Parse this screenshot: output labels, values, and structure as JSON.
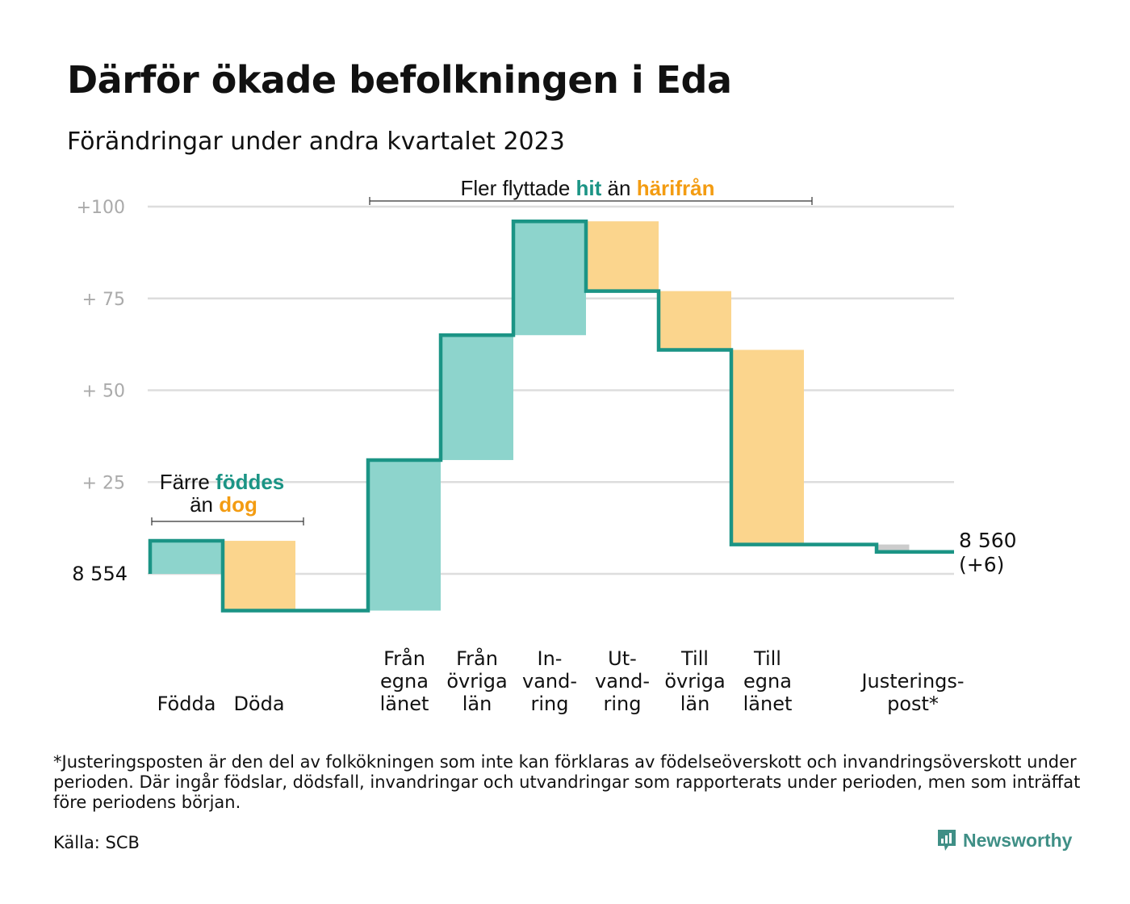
{
  "header": {
    "title": "Därför ökade befolkningen i Eda",
    "subtitle": "Förändringar under andra kvartalet 2023"
  },
  "chart_data": {
    "type": "waterfall",
    "start_value": 8554,
    "start_label": "8  554",
    "end_value": 8560,
    "end_label": "8 560",
    "end_change_label": "(+6)",
    "y_ticks": [
      {
        "value": 100,
        "label": "+100"
      },
      {
        "value": 75,
        "label": "+  75"
      },
      {
        "value": 50,
        "label": "+  50"
      },
      {
        "value": 25,
        "label": "+  25"
      }
    ],
    "ylim": [
      -12,
      100
    ],
    "grid": true,
    "steps": [
      {
        "label": [
          "Födda"
        ],
        "value": 9,
        "kind": "in"
      },
      {
        "label": [
          "Döda"
        ],
        "value": -19,
        "kind": "out"
      },
      {
        "label": [],
        "value": 0,
        "kind": "gap"
      },
      {
        "label": [
          "Från",
          "egna",
          "länet"
        ],
        "value": 41,
        "kind": "in"
      },
      {
        "label": [
          "Från",
          "övriga",
          "län"
        ],
        "value": 34,
        "kind": "in"
      },
      {
        "label": [
          "In-",
          "vand-",
          "ring"
        ],
        "value": 31,
        "kind": "in"
      },
      {
        "label": [
          "Ut-",
          "vand-",
          "ring"
        ],
        "value": -19,
        "kind": "out"
      },
      {
        "label": [
          "Till",
          "övriga",
          "län"
        ],
        "value": -16,
        "kind": "out"
      },
      {
        "label": [
          "Till",
          "egna",
          "länet"
        ],
        "value": -53,
        "kind": "out"
      },
      {
        "label": [],
        "value": 0,
        "kind": "gap"
      },
      {
        "label": [
          "Justerings-",
          "post*"
        ],
        "value": -2,
        "kind": "adjust"
      }
    ],
    "annotations": [
      {
        "id": "birth",
        "line1_prefix": "Färre ",
        "line1_highlight": "föddes",
        "line2_prefix": "än ",
        "line2_highlight": "dog"
      },
      {
        "id": "move",
        "prefix": "Fler flyttade ",
        "highlight1": "hit",
        "middle": " än ",
        "highlight2": "härifrån"
      }
    ],
    "colors": {
      "in": "#8dd4cc",
      "out": "#fbd58d",
      "adjust": "#cccccc",
      "line": "#1b9485",
      "teal_text": "#1b9485",
      "orange_text": "#f39c12",
      "grid": "#dddddd",
      "tick_text": "#aaaaaa"
    }
  },
  "footer": {
    "footnote": "*Justeringsposten är den del av folkökningen som inte kan förklaras av födelseöverskott och invandringsöverskott under perioden. Där ingår födslar, dödsfall, invandringar och utvandringar som rapporterats under perioden, men som inträffat före periodens början.",
    "source": "Källa: SCB",
    "brand": "Newsworthy",
    "brand_icon": "newsworthy-logo-icon"
  }
}
